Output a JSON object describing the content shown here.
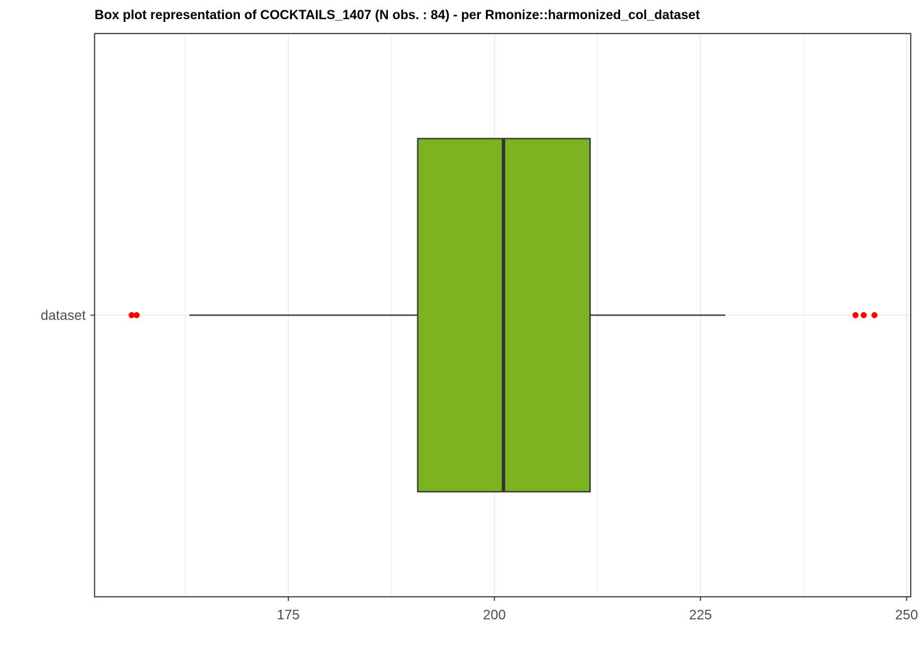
{
  "chart_data": {
    "type": "boxplot",
    "title": "Box plot representation of COCKTAILS_1407 (N obs. : 84) - per Rmonize::harmonized_col_dataset",
    "xlabel": "",
    "ylabel": "",
    "xlim": [
      151.5,
      250.5
    ],
    "x_ticks": [
      175,
      200,
      225,
      250
    ],
    "grid": true,
    "categories": [
      "dataset"
    ],
    "boxes": [
      {
        "category": "dataset",
        "whisker_low": 163,
        "q1": 190.7,
        "median": 201.1,
        "q3": 211.6,
        "whisker_high": 228,
        "outliers": [
          156.0,
          156.6,
          243.8,
          244.8,
          246.1
        ]
      }
    ],
    "colors": {
      "box_fill": "#7cb320",
      "box_stroke": "#333333",
      "outlier": "#ff0000",
      "grid": "#ebebeb"
    }
  }
}
